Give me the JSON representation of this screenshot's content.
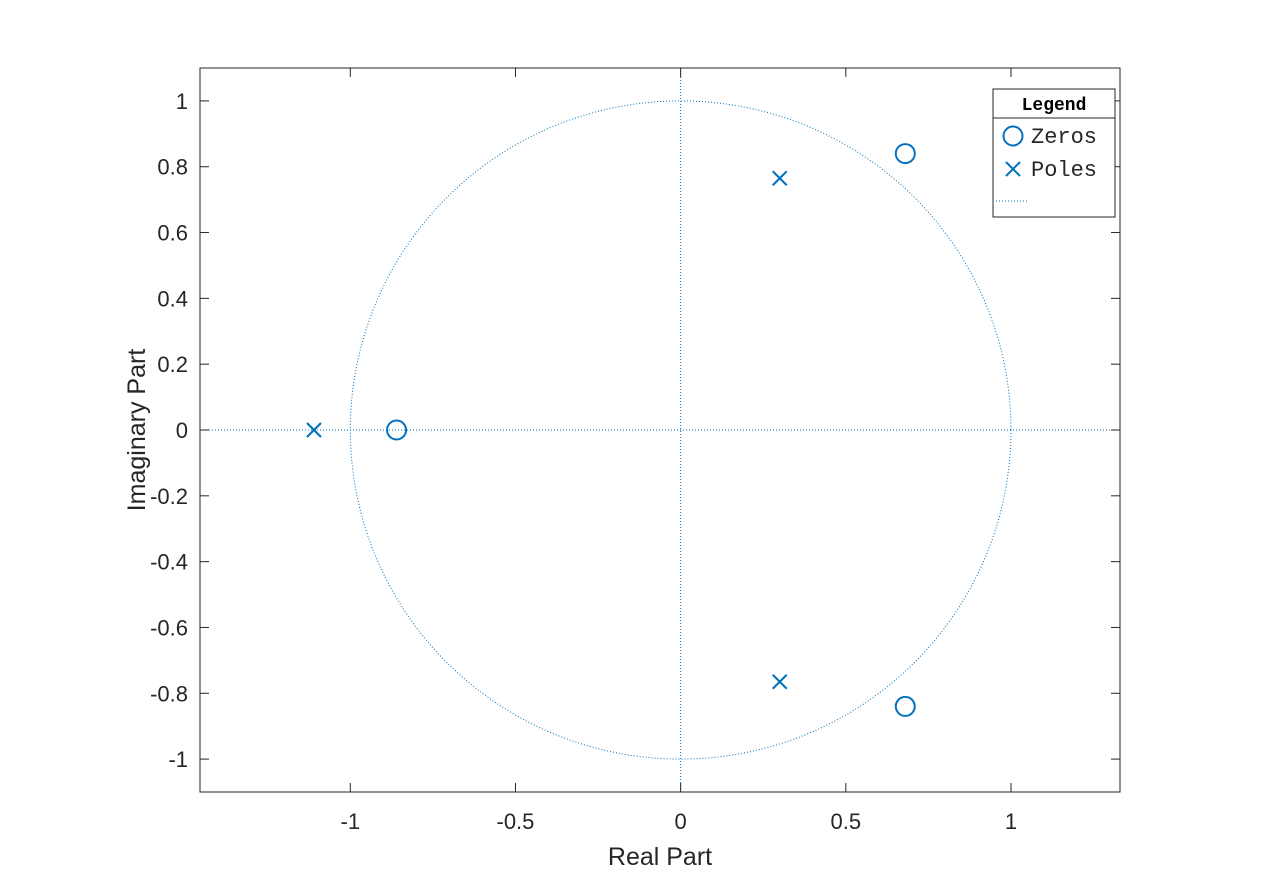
{
  "chart_data": {
    "type": "scatter",
    "title": "",
    "xlabel": "Real Part",
    "ylabel": "Imaginary Part",
    "xlim": [
      -1.455,
      1.33
    ],
    "ylim": [
      -1.1,
      1.1
    ],
    "xticks": [
      -1,
      -0.5,
      0,
      0.5,
      1
    ],
    "xtick_labels": [
      "-1",
      "-0.5",
      "0",
      "0.5",
      "1"
    ],
    "yticks": [
      -1,
      -0.8,
      -0.6,
      -0.4,
      -0.2,
      0,
      0.2,
      0.4,
      0.6,
      0.8,
      1
    ],
    "ytick_labels": [
      "-1",
      "-0.8",
      "-0.6",
      "-0.4",
      "-0.2",
      "0",
      "0.2",
      "0.4",
      "0.6",
      "0.8",
      "1"
    ],
    "grid": false,
    "series": [
      {
        "name": "Zeros",
        "marker": "circle",
        "points": [
          {
            "x": -0.86,
            "y": 0
          },
          {
            "x": 0.68,
            "y": 0.84
          },
          {
            "x": 0.68,
            "y": -0.84
          }
        ]
      },
      {
        "name": "Poles",
        "marker": "x",
        "points": [
          {
            "x": -1.11,
            "y": 0
          },
          {
            "x": 0.3,
            "y": 0.765
          },
          {
            "x": 0.3,
            "y": -0.765
          }
        ]
      }
    ],
    "unit_circle": {
      "radius": 1,
      "style": "dotted"
    },
    "legend": {
      "title": "Legend",
      "position": "top-right",
      "entries": [
        "Zeros",
        "Poles",
        ""
      ]
    },
    "colors": {
      "marker": "#0072BD",
      "axes": "#262626",
      "background": "#ffffff"
    }
  }
}
